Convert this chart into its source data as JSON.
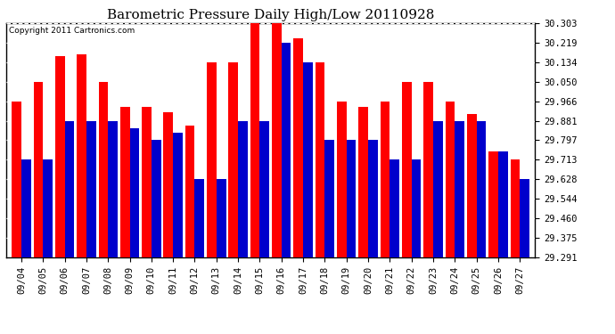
{
  "title": "Barometric Pressure Daily High/Low 20110928",
  "copyright": "Copyright 2011 Cartronics.com",
  "dates": [
    "09/04",
    "09/05",
    "09/06",
    "09/07",
    "09/08",
    "09/09",
    "09/10",
    "09/11",
    "09/12",
    "09/13",
    "09/14",
    "09/15",
    "09/16",
    "09/17",
    "09/18",
    "09/19",
    "09/20",
    "09/21",
    "09/22",
    "09/23",
    "09/24",
    "09/25",
    "09/26",
    "09/27"
  ],
  "highs": [
    29.966,
    30.05,
    30.16,
    30.17,
    30.05,
    29.94,
    29.94,
    29.92,
    29.86,
    30.134,
    30.134,
    30.303,
    30.303,
    30.24,
    30.134,
    29.966,
    29.94,
    29.966,
    30.05,
    30.05,
    29.966,
    29.91,
    29.75,
    29.713
  ],
  "lows": [
    29.713,
    29.713,
    29.881,
    29.881,
    29.881,
    29.85,
    29.797,
    29.83,
    29.628,
    29.628,
    29.881,
    29.881,
    30.219,
    30.134,
    29.797,
    29.797,
    29.797,
    29.713,
    29.713,
    29.881,
    29.881,
    29.881,
    29.75,
    29.628
  ],
  "high_color": "#ff0000",
  "low_color": "#0000cc",
  "bg_color": "#ffffff",
  "plot_bg_color": "#ffffff",
  "ymin": 29.291,
  "ymax": 30.303,
  "yticks": [
    29.291,
    29.375,
    29.46,
    29.544,
    29.628,
    29.713,
    29.797,
    29.881,
    29.966,
    30.05,
    30.134,
    30.219,
    30.303
  ]
}
